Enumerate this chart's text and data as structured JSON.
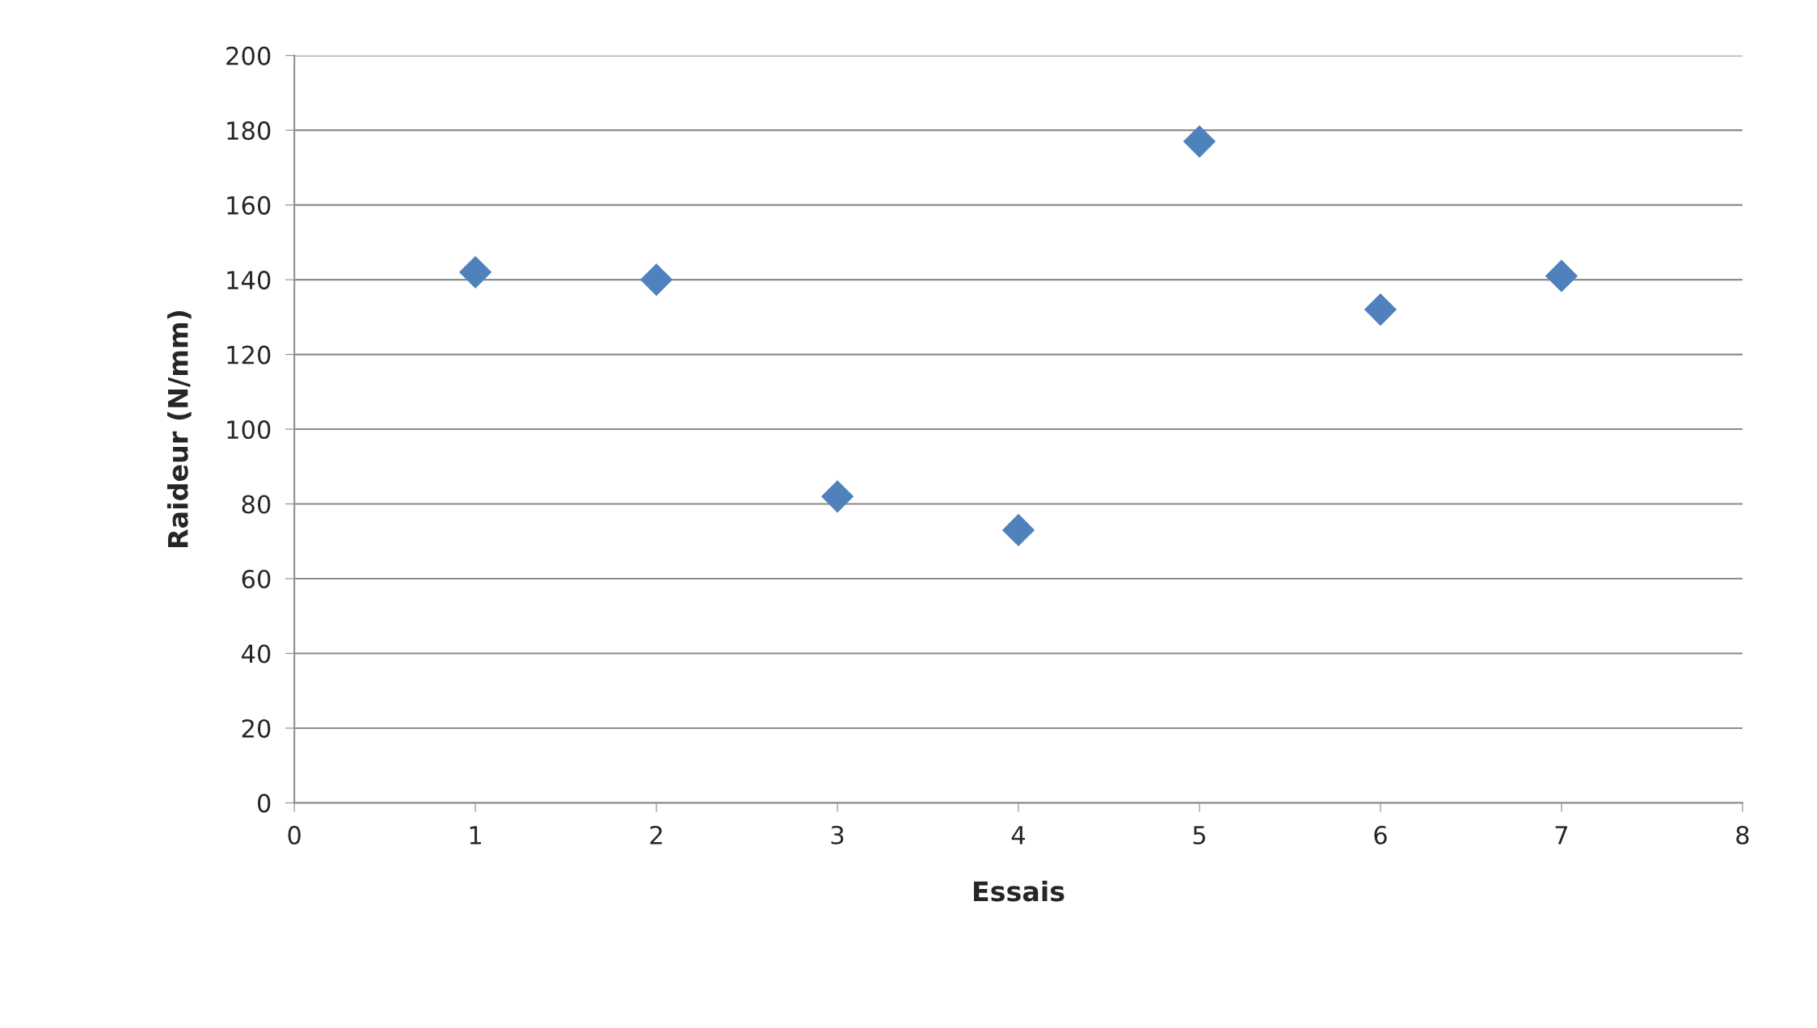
{
  "chart_data": {
    "type": "scatter",
    "xlabel": "Essais",
    "ylabel": "Raideur (N/mm)",
    "x": [
      1,
      2,
      3,
      4,
      5,
      6,
      7
    ],
    "series": [
      {
        "color": "#4f81bd",
        "values": [
          142,
          140,
          82,
          73,
          177,
          132,
          141
        ]
      }
    ],
    "xlim": [
      0,
      8
    ],
    "xticks": [
      0,
      1,
      2,
      3,
      4,
      5,
      6,
      7,
      8
    ],
    "ylim": [
      0,
      200
    ],
    "yticks": [
      0,
      20,
      40,
      60,
      80,
      100,
      120,
      140,
      160,
      180,
      200
    ],
    "grid": "y",
    "marker": "diamond",
    "legend": false
  }
}
